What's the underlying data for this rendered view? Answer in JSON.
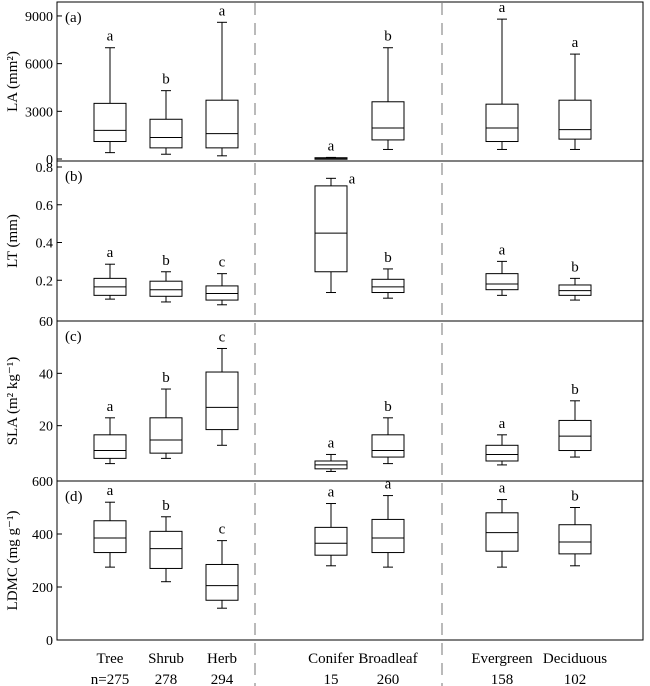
{
  "chart_data": {
    "type": "box",
    "groups": [
      {
        "name": "Tree",
        "n": "n=275"
      },
      {
        "name": "Shrub",
        "n": "278"
      },
      {
        "name": "Herb",
        "n": "294"
      },
      {
        "name": "Conifer",
        "n": "15"
      },
      {
        "name": "Broadleaf",
        "n": "260"
      },
      {
        "name": "Evergreen",
        "n": "158"
      },
      {
        "name": "Deciduous",
        "n": "102"
      }
    ],
    "panels": [
      {
        "id": "la",
        "tag": "(a)",
        "ylabel": "LA (mm²)",
        "ylim": [
          0,
          9500
        ],
        "ticks": [
          0,
          3000,
          6000,
          9000
        ],
        "tick_labels": [
          "0",
          "3000",
          "6000",
          "9000"
        ],
        "boxes": [
          {
            "min": 400,
            "q1": 1100,
            "median": 1800,
            "q3": 3500,
            "max": 7000,
            "letter": "a"
          },
          {
            "min": 300,
            "q1": 700,
            "median": 1350,
            "q3": 2500,
            "max": 4300,
            "letter": "b"
          },
          {
            "min": 200,
            "q1": 700,
            "median": 1600,
            "q3": 3700,
            "max": 8600,
            "letter": "a"
          },
          {
            "min": 0,
            "q1": 0,
            "median": 40,
            "q3": 80,
            "max": 100,
            "letter": "a"
          },
          {
            "min": 600,
            "q1": 1200,
            "median": 1950,
            "q3": 3600,
            "max": 7000,
            "letter": "b"
          },
          {
            "min": 600,
            "q1": 1100,
            "median": 1950,
            "q3": 3450,
            "max": 8800,
            "letter": "a"
          },
          {
            "min": 600,
            "q1": 1250,
            "median": 1850,
            "q3": 3700,
            "max": 6600,
            "letter": "a"
          }
        ]
      },
      {
        "id": "lt",
        "tag": "(b)",
        "ylabel": "LT (mm)",
        "ylim": [
          0,
          0.8
        ],
        "ticks": [
          0.2,
          0.4,
          0.6,
          0.8
        ],
        "tick_labels": [
          "0.2",
          "0.4",
          "0.6",
          "0.8"
        ],
        "boxes": [
          {
            "min": 0.1,
            "q1": 0.12,
            "median": 0.165,
            "q3": 0.21,
            "max": 0.285,
            "letter": "a"
          },
          {
            "min": 0.085,
            "q1": 0.115,
            "median": 0.15,
            "q3": 0.195,
            "max": 0.245,
            "letter": "b"
          },
          {
            "min": 0.07,
            "q1": 0.095,
            "median": 0.13,
            "q3": 0.17,
            "max": 0.235,
            "letter": "c"
          },
          {
            "min": 0.135,
            "q1": 0.245,
            "median": 0.45,
            "q3": 0.7,
            "max": 0.74,
            "letter": "a"
          },
          {
            "min": 0.105,
            "q1": 0.135,
            "median": 0.165,
            "q3": 0.205,
            "max": 0.26,
            "letter": "b"
          },
          {
            "min": 0.12,
            "q1": 0.15,
            "median": 0.18,
            "q3": 0.235,
            "max": 0.3,
            "letter": "a"
          },
          {
            "min": 0.095,
            "q1": 0.12,
            "median": 0.145,
            "q3": 0.175,
            "max": 0.21,
            "letter": "b"
          }
        ]
      },
      {
        "id": "sla",
        "tag": "(c)",
        "ylabel": "SLA (m² kg⁻¹)",
        "ylim": [
          0,
          60
        ],
        "ticks": [
          20,
          40,
          60
        ],
        "tick_labels": [
          "20",
          "40",
          "60"
        ],
        "boxes": [
          {
            "min": 5.5,
            "q1": 7.5,
            "median": 10.5,
            "q3": 16.5,
            "max": 23,
            "letter": "a"
          },
          {
            "min": 7.5,
            "q1": 9.5,
            "median": 14.5,
            "q3": 23,
            "max": 34,
            "letter": "b"
          },
          {
            "min": 12.5,
            "q1": 18.5,
            "median": 27,
            "q3": 40.5,
            "max": 49.5,
            "letter": "c"
          },
          {
            "min": 2.5,
            "q1": 3.5,
            "median": 5,
            "q3": 6.5,
            "max": 9,
            "letter": "a"
          },
          {
            "min": 5.5,
            "q1": 8,
            "median": 10.5,
            "q3": 16.5,
            "max": 23,
            "letter": "b"
          },
          {
            "min": 5,
            "q1": 6.5,
            "median": 9,
            "q3": 12.5,
            "max": 16.5,
            "letter": "a"
          },
          {
            "min": 8,
            "q1": 10.5,
            "median": 16,
            "q3": 22,
            "max": 29.5,
            "letter": "b"
          }
        ]
      },
      {
        "id": "ldmc",
        "tag": "(d)",
        "ylabel": "LDMC (mg g⁻¹)",
        "ylim": [
          0,
          600
        ],
        "ticks": [
          0,
          200,
          400,
          600
        ],
        "tick_labels": [
          "0",
          "200",
          "400",
          "600"
        ],
        "boxes": [
          {
            "min": 275,
            "q1": 330,
            "median": 385,
            "q3": 450,
            "max": 520,
            "letter": "a"
          },
          {
            "min": 220,
            "q1": 270,
            "median": 345,
            "q3": 410,
            "max": 465,
            "letter": "b"
          },
          {
            "min": 120,
            "q1": 150,
            "median": 205,
            "q3": 285,
            "max": 375,
            "letter": "c"
          },
          {
            "min": 280,
            "q1": 320,
            "median": 365,
            "q3": 425,
            "max": 515,
            "letter": "a"
          },
          {
            "min": 275,
            "q1": 330,
            "median": 385,
            "q3": 455,
            "max": 545,
            "letter": "a"
          },
          {
            "min": 275,
            "q1": 335,
            "median": 405,
            "q3": 480,
            "max": 530,
            "letter": "a"
          },
          {
            "min": 280,
            "q1": 325,
            "median": 370,
            "q3": 435,
            "max": 500,
            "letter": "b"
          }
        ]
      }
    ],
    "colors": {
      "stroke": "#000000",
      "separator": "#8c8c8c"
    }
  }
}
